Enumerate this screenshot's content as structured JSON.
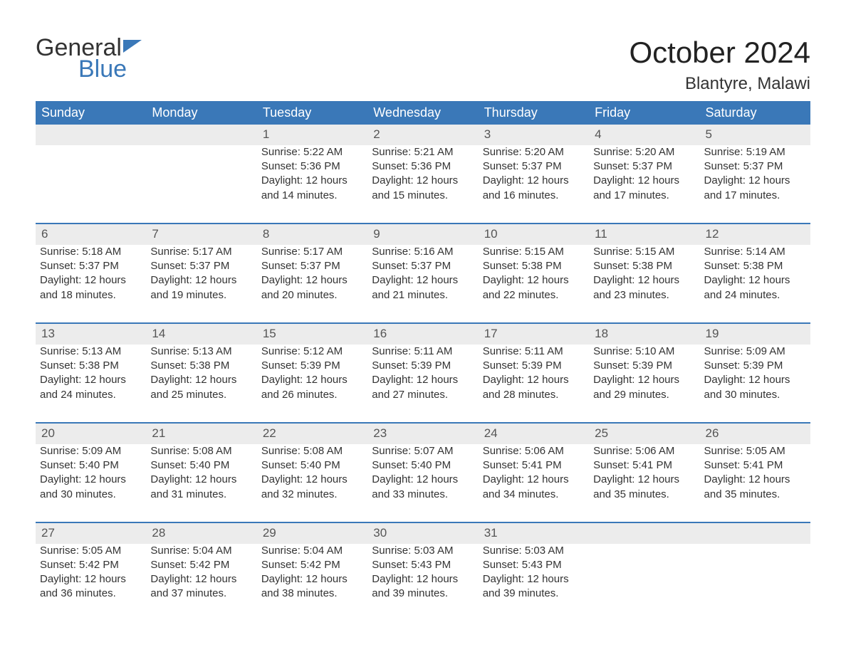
{
  "brand": {
    "line1": "General",
    "line2": "Blue"
  },
  "title": "October 2024",
  "location": "Blantyre, Malawi",
  "columns": [
    "Sunday",
    "Monday",
    "Tuesday",
    "Wednesday",
    "Thursday",
    "Friday",
    "Saturday"
  ],
  "colors": {
    "header_bg": "#3a78b8",
    "header_text": "#ffffff",
    "daynum_bg": "#ececec",
    "row_border": "#3a78b8",
    "body_text": "#333333",
    "brand_accent": "#3a78b8"
  },
  "typography": {
    "title_fontsize": 42,
    "location_fontsize": 24,
    "header_fontsize": 18,
    "cell_fontsize": 15,
    "font_family": "Arial"
  },
  "layout": {
    "cols": 7,
    "rows": 5,
    "aspect_ratio": "1188x918"
  },
  "weeks": [
    [
      null,
      null,
      {
        "n": "1",
        "sunrise": "Sunrise: 5:22 AM",
        "sunset": "Sunset: 5:36 PM",
        "d1": "Daylight: 12 hours",
        "d2": "and 14 minutes."
      },
      {
        "n": "2",
        "sunrise": "Sunrise: 5:21 AM",
        "sunset": "Sunset: 5:36 PM",
        "d1": "Daylight: 12 hours",
        "d2": "and 15 minutes."
      },
      {
        "n": "3",
        "sunrise": "Sunrise: 5:20 AM",
        "sunset": "Sunset: 5:37 PM",
        "d1": "Daylight: 12 hours",
        "d2": "and 16 minutes."
      },
      {
        "n": "4",
        "sunrise": "Sunrise: 5:20 AM",
        "sunset": "Sunset: 5:37 PM",
        "d1": "Daylight: 12 hours",
        "d2": "and 17 minutes."
      },
      {
        "n": "5",
        "sunrise": "Sunrise: 5:19 AM",
        "sunset": "Sunset: 5:37 PM",
        "d1": "Daylight: 12 hours",
        "d2": "and 17 minutes."
      }
    ],
    [
      {
        "n": "6",
        "sunrise": "Sunrise: 5:18 AM",
        "sunset": "Sunset: 5:37 PM",
        "d1": "Daylight: 12 hours",
        "d2": "and 18 minutes."
      },
      {
        "n": "7",
        "sunrise": "Sunrise: 5:17 AM",
        "sunset": "Sunset: 5:37 PM",
        "d1": "Daylight: 12 hours",
        "d2": "and 19 minutes."
      },
      {
        "n": "8",
        "sunrise": "Sunrise: 5:17 AM",
        "sunset": "Sunset: 5:37 PM",
        "d1": "Daylight: 12 hours",
        "d2": "and 20 minutes."
      },
      {
        "n": "9",
        "sunrise": "Sunrise: 5:16 AM",
        "sunset": "Sunset: 5:37 PM",
        "d1": "Daylight: 12 hours",
        "d2": "and 21 minutes."
      },
      {
        "n": "10",
        "sunrise": "Sunrise: 5:15 AM",
        "sunset": "Sunset: 5:38 PM",
        "d1": "Daylight: 12 hours",
        "d2": "and 22 minutes."
      },
      {
        "n": "11",
        "sunrise": "Sunrise: 5:15 AM",
        "sunset": "Sunset: 5:38 PM",
        "d1": "Daylight: 12 hours",
        "d2": "and 23 minutes."
      },
      {
        "n": "12",
        "sunrise": "Sunrise: 5:14 AM",
        "sunset": "Sunset: 5:38 PM",
        "d1": "Daylight: 12 hours",
        "d2": "and 24 minutes."
      }
    ],
    [
      {
        "n": "13",
        "sunrise": "Sunrise: 5:13 AM",
        "sunset": "Sunset: 5:38 PM",
        "d1": "Daylight: 12 hours",
        "d2": "and 24 minutes."
      },
      {
        "n": "14",
        "sunrise": "Sunrise: 5:13 AM",
        "sunset": "Sunset: 5:38 PM",
        "d1": "Daylight: 12 hours",
        "d2": "and 25 minutes."
      },
      {
        "n": "15",
        "sunrise": "Sunrise: 5:12 AM",
        "sunset": "Sunset: 5:39 PM",
        "d1": "Daylight: 12 hours",
        "d2": "and 26 minutes."
      },
      {
        "n": "16",
        "sunrise": "Sunrise: 5:11 AM",
        "sunset": "Sunset: 5:39 PM",
        "d1": "Daylight: 12 hours",
        "d2": "and 27 minutes."
      },
      {
        "n": "17",
        "sunrise": "Sunrise: 5:11 AM",
        "sunset": "Sunset: 5:39 PM",
        "d1": "Daylight: 12 hours",
        "d2": "and 28 minutes."
      },
      {
        "n": "18",
        "sunrise": "Sunrise: 5:10 AM",
        "sunset": "Sunset: 5:39 PM",
        "d1": "Daylight: 12 hours",
        "d2": "and 29 minutes."
      },
      {
        "n": "19",
        "sunrise": "Sunrise: 5:09 AM",
        "sunset": "Sunset: 5:39 PM",
        "d1": "Daylight: 12 hours",
        "d2": "and 30 minutes."
      }
    ],
    [
      {
        "n": "20",
        "sunrise": "Sunrise: 5:09 AM",
        "sunset": "Sunset: 5:40 PM",
        "d1": "Daylight: 12 hours",
        "d2": "and 30 minutes."
      },
      {
        "n": "21",
        "sunrise": "Sunrise: 5:08 AM",
        "sunset": "Sunset: 5:40 PM",
        "d1": "Daylight: 12 hours",
        "d2": "and 31 minutes."
      },
      {
        "n": "22",
        "sunrise": "Sunrise: 5:08 AM",
        "sunset": "Sunset: 5:40 PM",
        "d1": "Daylight: 12 hours",
        "d2": "and 32 minutes."
      },
      {
        "n": "23",
        "sunrise": "Sunrise: 5:07 AM",
        "sunset": "Sunset: 5:40 PM",
        "d1": "Daylight: 12 hours",
        "d2": "and 33 minutes."
      },
      {
        "n": "24",
        "sunrise": "Sunrise: 5:06 AM",
        "sunset": "Sunset: 5:41 PM",
        "d1": "Daylight: 12 hours",
        "d2": "and 34 minutes."
      },
      {
        "n": "25",
        "sunrise": "Sunrise: 5:06 AM",
        "sunset": "Sunset: 5:41 PM",
        "d1": "Daylight: 12 hours",
        "d2": "and 35 minutes."
      },
      {
        "n": "26",
        "sunrise": "Sunrise: 5:05 AM",
        "sunset": "Sunset: 5:41 PM",
        "d1": "Daylight: 12 hours",
        "d2": "and 35 minutes."
      }
    ],
    [
      {
        "n": "27",
        "sunrise": "Sunrise: 5:05 AM",
        "sunset": "Sunset: 5:42 PM",
        "d1": "Daylight: 12 hours",
        "d2": "and 36 minutes."
      },
      {
        "n": "28",
        "sunrise": "Sunrise: 5:04 AM",
        "sunset": "Sunset: 5:42 PM",
        "d1": "Daylight: 12 hours",
        "d2": "and 37 minutes."
      },
      {
        "n": "29",
        "sunrise": "Sunrise: 5:04 AM",
        "sunset": "Sunset: 5:42 PM",
        "d1": "Daylight: 12 hours",
        "d2": "and 38 minutes."
      },
      {
        "n": "30",
        "sunrise": "Sunrise: 5:03 AM",
        "sunset": "Sunset: 5:43 PM",
        "d1": "Daylight: 12 hours",
        "d2": "and 39 minutes."
      },
      {
        "n": "31",
        "sunrise": "Sunrise: 5:03 AM",
        "sunset": "Sunset: 5:43 PM",
        "d1": "Daylight: 12 hours",
        "d2": "and 39 minutes."
      },
      null,
      null
    ]
  ]
}
